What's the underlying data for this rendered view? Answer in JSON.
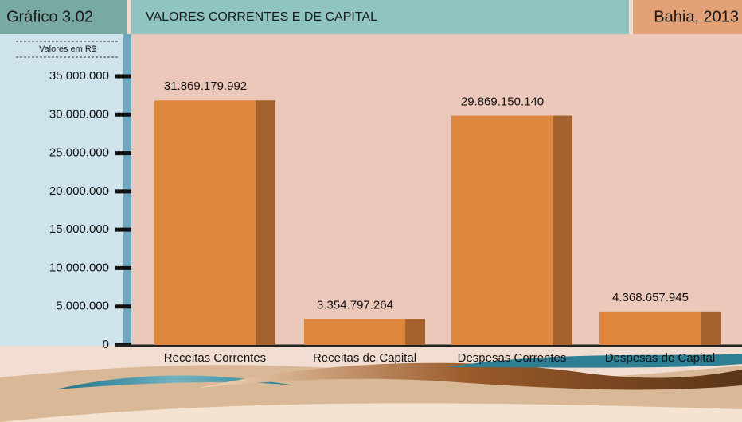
{
  "chart_data": {
    "type": "bar",
    "label": "Gráfico 3.02",
    "title": "VALORES CORRENTES E DE CAPITAL",
    "subtitle": "Bahia, 2013",
    "y_label": "Valores em R$",
    "categories": [
      "Receitas Correntes",
      "Receitas de Capital",
      "Despesas Correntes",
      "Despesas de Capital"
    ],
    "values": [
      31869179.992,
      3354797.264,
      29869150.14,
      4368657.945
    ],
    "value_labels": [
      "31.869.179.992",
      "3.354.797.264",
      "29.869.150.140",
      "4.368.657.945"
    ],
    "color": "#e0873f",
    "side_color": "#a5612e",
    "ylim": [
      0,
      35000000
    ],
    "yticks": [
      0,
      {
        "value": 5000000,
        "label": "5.000.000"
      },
      {
        "value": 10000000,
        "label": "10.000.000"
      },
      {
        "value": 15000000,
        "label": "15.000.000"
      },
      {
        "value": 20000000,
        "label": "20.000.000"
      },
      {
        "value": 25000000,
        "label": "25.000.000"
      },
      {
        "value": 30000000,
        "label": "30.000.000"
      },
      {
        "value": 35000000,
        "label": "35.000.000"
      }
    ],
    "grid": false
  }
}
